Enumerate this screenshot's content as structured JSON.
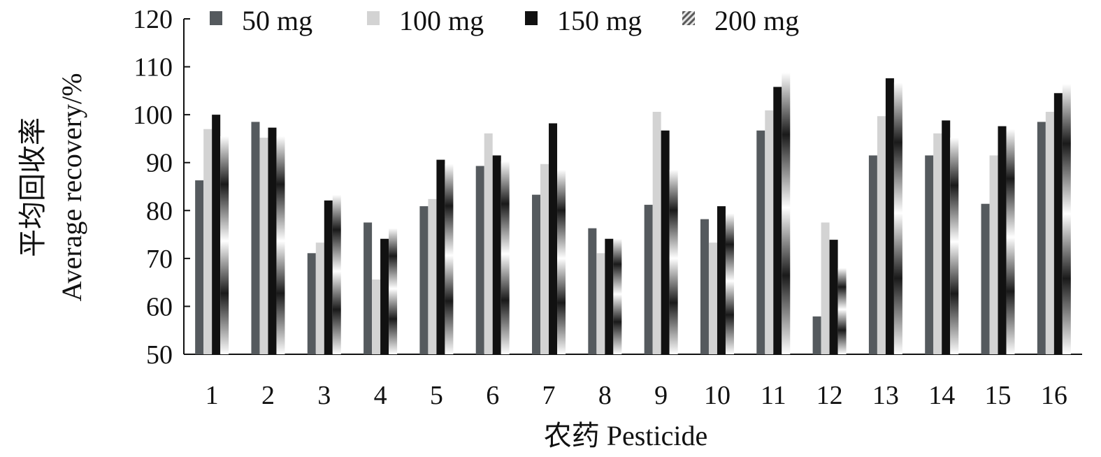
{
  "chart_data": {
    "type": "bar",
    "title": "",
    "xlabel": "农药 Pesticide",
    "ylabel_cn": "平均回收率",
    "ylabel_en": "Average recovery/%",
    "ylim": [
      50,
      120
    ],
    "yticks": [
      50,
      60,
      70,
      80,
      90,
      100,
      110,
      120
    ],
    "grid": false,
    "legend_position": "top",
    "categories": [
      "1",
      "2",
      "3",
      "4",
      "5",
      "6",
      "7",
      "8",
      "9",
      "10",
      "11",
      "12",
      "13",
      "14",
      "15",
      "16"
    ],
    "series": [
      {
        "name": "50 mg",
        "color": "#555a5e",
        "fill": "solid",
        "values": [
          86.3,
          98.5,
          71.1,
          77.5,
          80.9,
          89.3,
          83.3,
          76.3,
          81.2,
          78.2,
          96.7,
          57.9,
          91.5,
          91.5,
          81.4,
          98.5
        ]
      },
      {
        "name": "100 mg",
        "color": "#d3d3d3",
        "fill": "solid",
        "values": [
          97.0,
          95.2,
          73.3,
          65.6,
          82.4,
          96.1,
          89.7,
          71.1,
          100.6,
          73.3,
          100.9,
          77.5,
          99.7,
          96.1,
          91.5,
          100.6
        ]
      },
      {
        "name": "150 mg",
        "color": "#111111",
        "fill": "solid",
        "values": [
          100.0,
          97.3,
          82.1,
          74.1,
          90.6,
          91.5,
          98.2,
          74.1,
          96.7,
          80.9,
          105.8,
          73.9,
          107.6,
          98.8,
          97.6,
          104.5
        ]
      },
      {
        "name": "200 mg",
        "color": "#8a8a8a",
        "fill": "gradient",
        "values": [
          95.5,
          95.5,
          83.3,
          76.3,
          89.7,
          90.3,
          88.5,
          74.1,
          88.5,
          79.4,
          108.8,
          68.0,
          106.7,
          95.2,
          97.0,
          106.4
        ]
      }
    ]
  }
}
